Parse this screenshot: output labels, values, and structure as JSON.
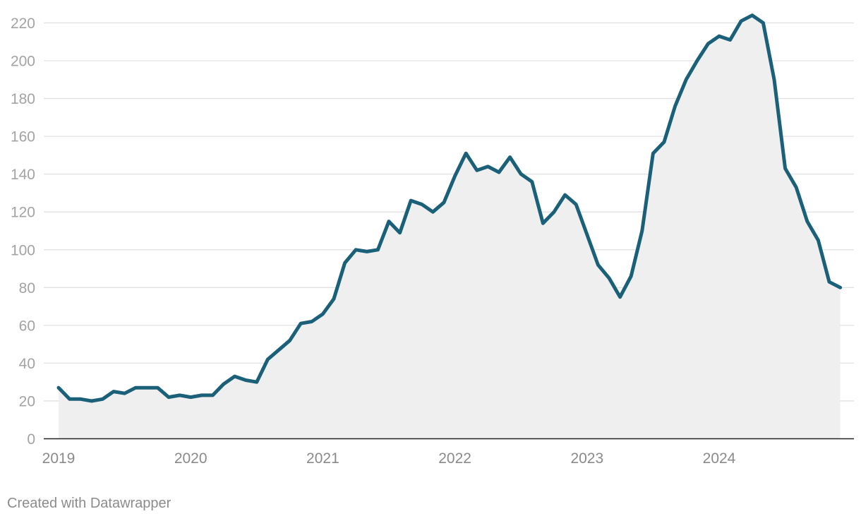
{
  "chart_data": {
    "type": "area",
    "x_ticks": [
      "2019",
      "2020",
      "2021",
      "2022",
      "2023",
      "2024"
    ],
    "y_ticks": [
      0,
      20,
      40,
      60,
      80,
      100,
      120,
      140,
      160,
      180,
      200,
      220
    ],
    "ylim": [
      0,
      225
    ],
    "xlim": [
      "2019-01",
      "2024-12"
    ],
    "grid": true,
    "x": [
      "2019-01",
      "2019-02",
      "2019-03",
      "2019-04",
      "2019-05",
      "2019-06",
      "2019-07",
      "2019-08",
      "2019-09",
      "2019-10",
      "2019-11",
      "2019-12",
      "2020-01",
      "2020-02",
      "2020-03",
      "2020-04",
      "2020-05",
      "2020-06",
      "2020-07",
      "2020-08",
      "2020-09",
      "2020-10",
      "2020-11",
      "2020-12",
      "2021-01",
      "2021-02",
      "2021-03",
      "2021-04",
      "2021-05",
      "2021-06",
      "2021-07",
      "2021-08",
      "2021-09",
      "2021-10",
      "2021-11",
      "2021-12",
      "2022-01",
      "2022-02",
      "2022-03",
      "2022-04",
      "2022-05",
      "2022-06",
      "2022-07",
      "2022-08",
      "2022-09",
      "2022-10",
      "2022-11",
      "2022-12",
      "2023-01",
      "2023-02",
      "2023-03",
      "2023-04",
      "2023-05",
      "2023-06",
      "2023-07",
      "2023-08",
      "2023-09",
      "2023-10",
      "2023-11",
      "2023-12",
      "2024-01",
      "2024-02",
      "2024-03",
      "2024-04",
      "2024-05",
      "2024-06",
      "2024-07",
      "2024-08",
      "2024-09",
      "2024-10",
      "2024-11",
      "2024-12"
    ],
    "series": [
      {
        "values": [
          27,
          21,
          21,
          20,
          21,
          25,
          24,
          27,
          27,
          27,
          22,
          23,
          22,
          23,
          23,
          29,
          33,
          31,
          30,
          42,
          47,
          52,
          61,
          62,
          66,
          74,
          93,
          100,
          99,
          100,
          115,
          109,
          126,
          124,
          120,
          125,
          139,
          151,
          142,
          144,
          141,
          149,
          140,
          136,
          114,
          120,
          129,
          124,
          108,
          92,
          85,
          75,
          86,
          110,
          151,
          157,
          176,
          190,
          200,
          209,
          213,
          211,
          221,
          224,
          220,
          190,
          143,
          133,
          115,
          105,
          83,
          80
        ]
      }
    ],
    "line_color": "#1b6079",
    "area_color": "#efefef"
  },
  "footer": {
    "credit": "Created with Datawrapper"
  }
}
